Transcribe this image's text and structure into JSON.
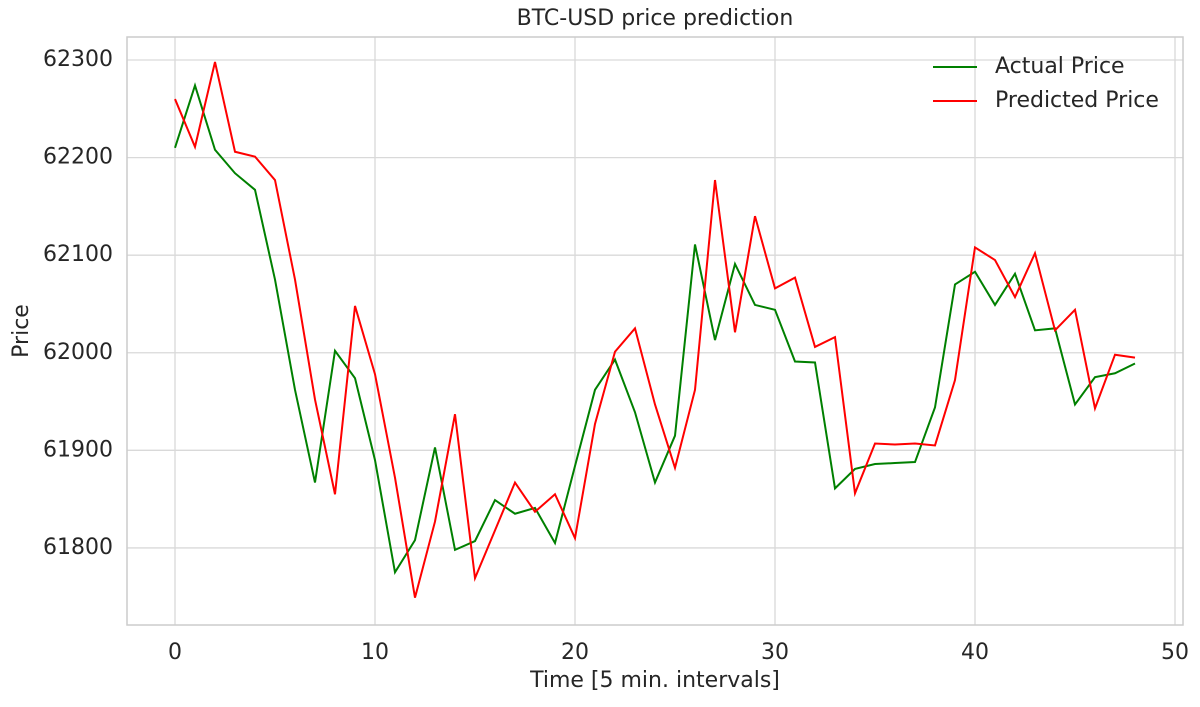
{
  "chart_data": {
    "type": "line",
    "title": "BTC-USD price prediction",
    "xlabel": "Time [5 min. intervals]",
    "ylabel": "Price",
    "x": [
      0,
      1,
      2,
      3,
      4,
      5,
      6,
      7,
      8,
      9,
      10,
      11,
      12,
      13,
      14,
      15,
      16,
      17,
      18,
      19,
      20,
      21,
      22,
      23,
      24,
      25,
      26,
      27,
      28,
      29,
      30,
      31,
      32,
      33,
      34,
      35,
      36,
      37,
      38,
      39,
      40,
      41,
      42,
      43,
      44,
      45,
      46,
      47,
      48
    ],
    "series": [
      {
        "name": "Actual Price",
        "color": "#008000",
        "values": [
          62210,
          62274,
          62208,
          62184,
          62167,
          62075,
          61962,
          61867,
          62002,
          61974,
          61890,
          61775,
          61808,
          61903,
          61798,
          61807,
          61849,
          61835,
          61841,
          61805,
          61884,
          61962,
          61993,
          61939,
          61867,
          61915,
          62111,
          62013,
          62091,
          62049,
          62044,
          61991,
          61990,
          61861,
          61881,
          61886,
          61887,
          61888,
          61944,
          62070,
          62083,
          62049,
          62081,
          62023,
          62025,
          61947,
          61975,
          61979,
          61989
        ]
      },
      {
        "name": "Predicted Price",
        "color": "#ff0000",
        "values": [
          62260,
          62211,
          62298,
          62206,
          62201,
          62177,
          62075,
          61952,
          61855,
          62048,
          61978,
          61872,
          61749,
          61827,
          61937,
          61769,
          61818,
          61867,
          61837,
          61855,
          61810,
          61927,
          62001,
          62025,
          61947,
          61882,
          61962,
          62177,
          62021,
          62140,
          62066,
          62077,
          62006,
          62016,
          61856,
          61907,
          61906,
          61907,
          61905,
          61972,
          62108,
          62095,
          62057,
          62102,
          62023,
          62044,
          61943,
          61998,
          61995
        ]
      }
    ],
    "xlim": [
      -2.4,
      50.4
    ],
    "xticks": [
      0,
      10,
      20,
      30,
      40,
      50
    ],
    "ylim": [
      61721,
      62323.6
    ],
    "yticks": [
      61800,
      61900,
      62000,
      62100,
      62200,
      62300
    ],
    "grid": true,
    "legend": "upper right"
  }
}
